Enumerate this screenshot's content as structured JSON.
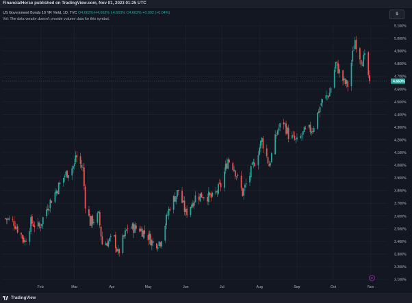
{
  "header": {
    "published": "FinancialHorse published on TradingView.com, Nov 01, 2023 01:25 UTC",
    "currency_button": "$"
  },
  "legend": {
    "symbol": "US Government Bonds 10 YR Yield, 1D, TVC",
    "ohlc": "O4.662% H4.663% L4.663% C4.663% +0.002 (+0.04%)",
    "volume_note": "Vol: The data vendor doesn't provide volume data for this symbol."
  },
  "footer": {
    "logo_text": "TradingView"
  },
  "colors": {
    "background": "#131722",
    "up": "#26a69a",
    "down": "#ef5350",
    "grid": "#1f2330",
    "price_tag": "#26a69a"
  },
  "chart_data": {
    "type": "candlestick",
    "title": "",
    "xlabel": "",
    "ylabel": "",
    "ylim": [
      3.1,
      5.1
    ],
    "y_ticks": [
      "5.100%",
      "5.000%",
      "4.900%",
      "4.800%",
      "4.700%",
      "4.600%",
      "4.500%",
      "4.400%",
      "4.300%",
      "4.200%",
      "4.100%",
      "4.000%",
      "3.900%",
      "3.800%",
      "3.700%",
      "3.600%",
      "3.500%",
      "3.400%",
      "3.300%",
      "3.200%",
      "3.100%"
    ],
    "y_tick_values": [
      5.1,
      5.0,
      4.9,
      4.8,
      4.7,
      4.6,
      4.5,
      4.4,
      4.3,
      4.2,
      4.1,
      4.0,
      3.9,
      3.8,
      3.7,
      3.6,
      3.5,
      3.4,
      3.3,
      3.2,
      3.1
    ],
    "x_ticks": [
      "Feb",
      "Mar",
      "Apr",
      "May",
      "Jun",
      "Jul",
      "Aug",
      "Sep",
      "Oct",
      "Nov"
    ],
    "x_tick_dates": [
      "2023-02-01",
      "2023-03-01",
      "2023-04-01",
      "2023-05-01",
      "2023-06-01",
      "2023-07-01",
      "2023-08-01",
      "2023-09-01",
      "2023-10-01",
      "2023-11-01"
    ],
    "date_range": [
      "2023-01-03",
      "2023-10-31"
    ],
    "last_price": 4.663,
    "last_price_label": "4.663%",
    "grid": true,
    "close_path": [
      [
        "2023-01-03",
        3.58
      ],
      [
        "2023-01-10",
        3.55
      ],
      [
        "2023-01-19",
        3.4
      ],
      [
        "2023-01-24",
        3.55
      ],
      [
        "2023-01-31",
        3.51
      ],
      [
        "2023-02-07",
        3.68
      ],
      [
        "2023-02-14",
        3.8
      ],
      [
        "2023-02-21",
        3.92
      ],
      [
        "2023-03-01",
        4.0
      ],
      [
        "2023-03-02",
        4.08
      ],
      [
        "2023-03-08",
        3.97
      ],
      [
        "2023-03-10",
        3.7
      ],
      [
        "2023-03-14",
        3.55
      ],
      [
        "2023-03-21",
        3.6
      ],
      [
        "2023-03-24",
        3.38
      ],
      [
        "2023-04-03",
        3.42
      ],
      [
        "2023-04-06",
        3.3
      ],
      [
        "2023-04-14",
        3.51
      ],
      [
        "2023-04-24",
        3.5
      ],
      [
        "2023-05-02",
        3.43
      ],
      [
        "2023-05-05",
        3.38
      ],
      [
        "2023-05-11",
        3.4
      ],
      [
        "2023-05-19",
        3.68
      ],
      [
        "2023-05-26",
        3.8
      ],
      [
        "2023-06-01",
        3.62
      ],
      [
        "2023-06-09",
        3.75
      ],
      [
        "2023-06-16",
        3.77
      ],
      [
        "2023-06-23",
        3.74
      ],
      [
        "2023-06-30",
        3.84
      ],
      [
        "2023-07-06",
        4.05
      ],
      [
        "2023-07-11",
        3.98
      ],
      [
        "2023-07-18",
        3.78
      ],
      [
        "2023-07-21",
        3.85
      ],
      [
        "2023-07-27",
        4.0
      ],
      [
        "2023-08-03",
        4.2
      ],
      [
        "2023-08-09",
        4.0
      ],
      [
        "2023-08-16",
        4.28
      ],
      [
        "2023-08-21",
        4.34
      ],
      [
        "2023-08-25",
        4.24
      ],
      [
        "2023-09-01",
        4.18
      ],
      [
        "2023-09-07",
        4.26
      ],
      [
        "2023-09-14",
        4.29
      ],
      [
        "2023-09-21",
        4.49
      ],
      [
        "2023-09-28",
        4.57
      ],
      [
        "2023-10-03",
        4.8
      ],
      [
        "2023-10-10",
        4.65
      ],
      [
        "2023-10-13",
        4.63
      ],
      [
        "2023-10-19",
        4.99
      ],
      [
        "2023-10-24",
        4.83
      ],
      [
        "2023-10-27",
        4.84
      ],
      [
        "2023-10-31",
        4.663
      ]
    ]
  }
}
